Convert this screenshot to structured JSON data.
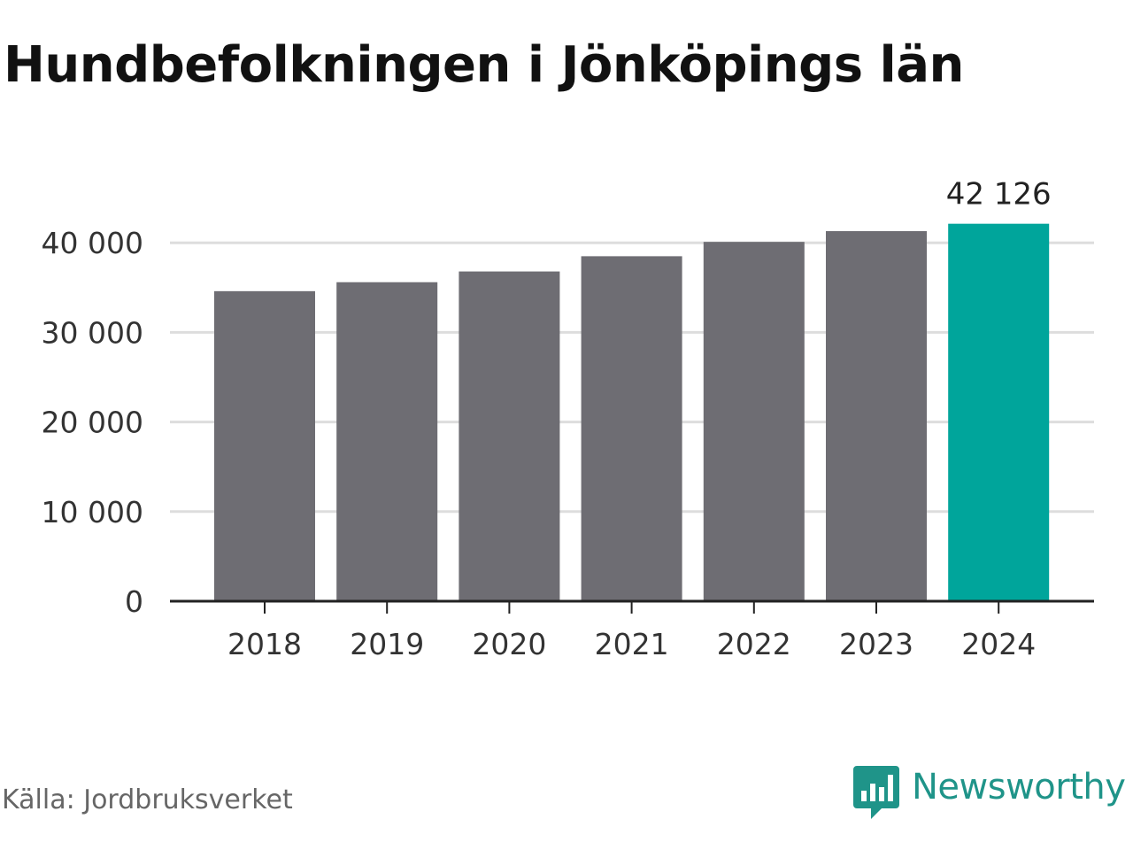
{
  "title": "Hundbefolkningen i Jönköpings län",
  "source": "Källa: Jordbruksverket",
  "brand": {
    "name": "Newsworthy",
    "icon": "newsworthy-logo-icon",
    "color": "#1f9489"
  },
  "chart_data": {
    "type": "bar",
    "title": "Hundbefolkningen i Jönköpings län",
    "xlabel": "",
    "ylabel": "",
    "categories": [
      "2018",
      "2019",
      "2020",
      "2021",
      "2022",
      "2023",
      "2024"
    ],
    "values": [
      34600,
      35600,
      36800,
      38500,
      40100,
      41300,
      42126
    ],
    "ylim": [
      0,
      42126
    ],
    "yticks": [
      0,
      10000,
      20000,
      30000,
      40000
    ],
    "ytick_labels": [
      "0",
      "10 000",
      "20 000",
      "30 000",
      "40 000"
    ],
    "data_labels": [
      {
        "category": "2024",
        "text": "42 126"
      }
    ],
    "highlight_category": "2024",
    "grid": true,
    "colors": {
      "bar": "#6e6d73",
      "highlight": "#00a59b",
      "grid": "#dddddd",
      "axis": "#222222"
    }
  }
}
